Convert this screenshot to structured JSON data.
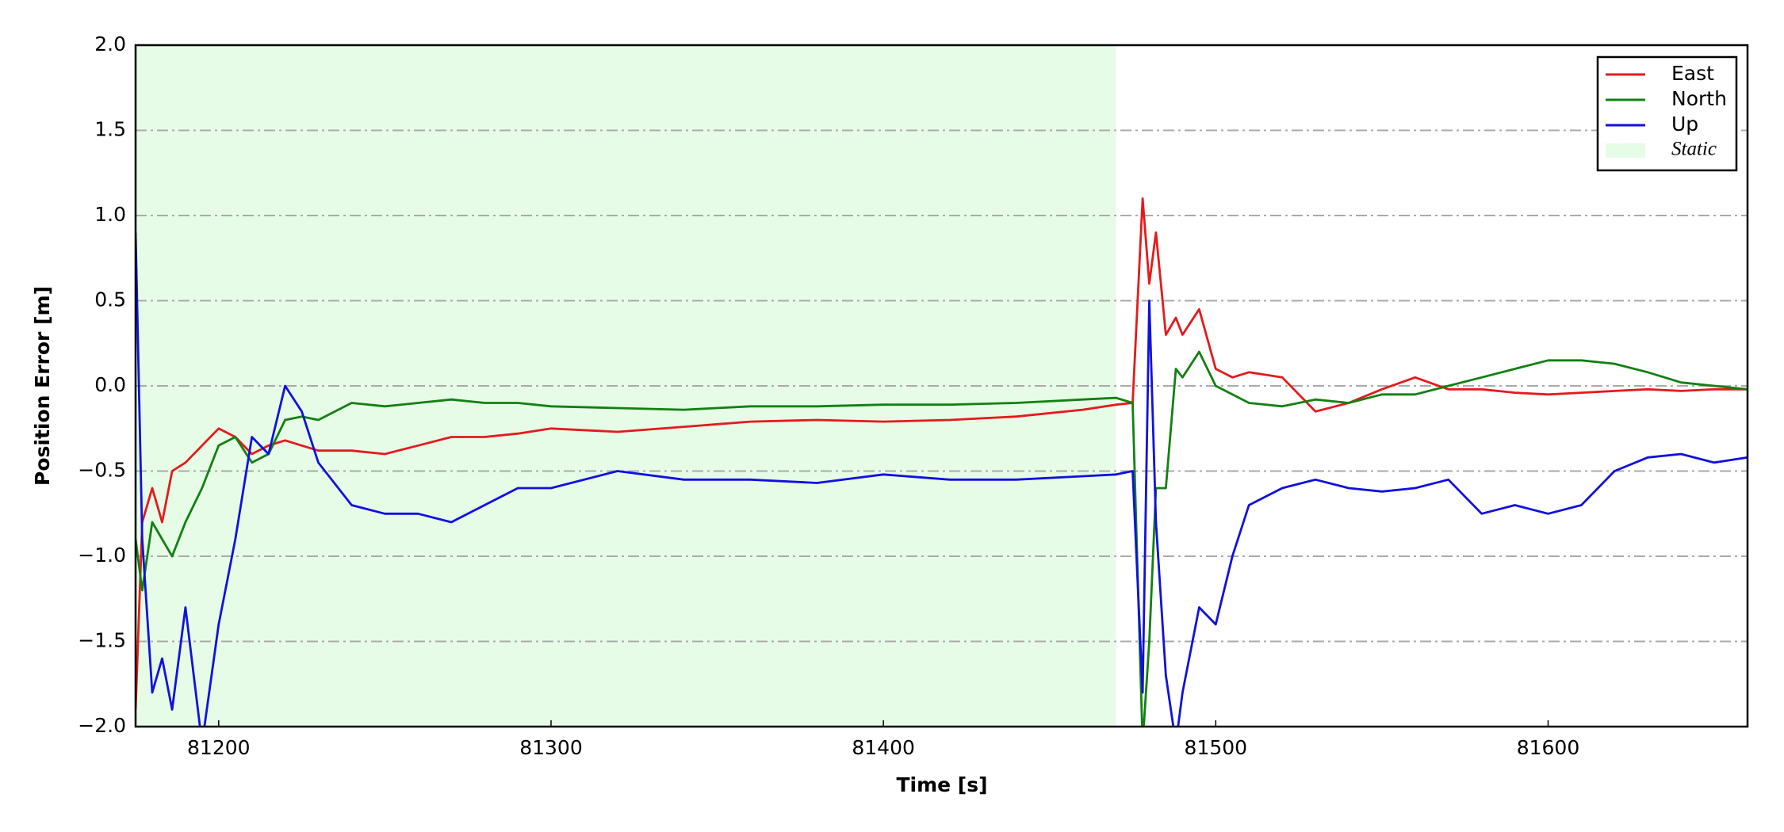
{
  "chart_data": {
    "type": "line",
    "xlabel": "Time [s]",
    "ylabel": "Position Error [m]",
    "x": [
      81175,
      81177,
      81180,
      81183,
      81186,
      81190,
      81195,
      81200,
      81205,
      81210,
      81215,
      81220,
      81225,
      81230,
      81240,
      81250,
      81260,
      81270,
      81280,
      81290,
      81300,
      81320,
      81340,
      81360,
      81380,
      81400,
      81420,
      81440,
      81460,
      81470,
      81475,
      81478,
      81480,
      81482,
      81485,
      81488,
      81490,
      81495,
      81500,
      81505,
      81510,
      81520,
      81530,
      81540,
      81550,
      81560,
      81570,
      81580,
      81590,
      81600,
      81610,
      81620,
      81630,
      81640,
      81650,
      81660
    ],
    "series": [
      {
        "name": "East",
        "color": "#e41a1c",
        "values": [
          -1.9,
          -0.8,
          -0.6,
          -0.8,
          -0.5,
          -0.45,
          -0.35,
          -0.25,
          -0.3,
          -0.4,
          -0.35,
          -0.32,
          -0.35,
          -0.38,
          -0.38,
          -0.4,
          -0.35,
          -0.3,
          -0.3,
          -0.28,
          -0.25,
          -0.27,
          -0.24,
          -0.21,
          -0.2,
          -0.21,
          -0.2,
          -0.18,
          -0.14,
          -0.11,
          -0.1,
          1.1,
          0.6,
          0.9,
          0.3,
          0.4,
          0.3,
          0.45,
          0.1,
          0.05,
          0.08,
          0.05,
          -0.15,
          -0.1,
          -0.02,
          0.05,
          -0.02,
          -0.02,
          -0.04,
          -0.05,
          -0.04,
          -0.03,
          -0.02,
          -0.03,
          -0.02,
          -0.02
        ]
      },
      {
        "name": "North",
        "color": "#128012",
        "values": [
          -0.9,
          -1.2,
          -0.8,
          -0.9,
          -1.0,
          -0.8,
          -0.6,
          -0.35,
          -0.3,
          -0.45,
          -0.4,
          -0.2,
          -0.18,
          -0.2,
          -0.1,
          -0.12,
          -0.1,
          -0.08,
          -0.1,
          -0.1,
          -0.12,
          -0.13,
          -0.14,
          -0.12,
          -0.12,
          -0.11,
          -0.11,
          -0.1,
          -0.08,
          -0.07,
          -0.1,
          -2.1,
          -1.5,
          -0.6,
          -0.6,
          0.1,
          0.05,
          0.2,
          0.0,
          -0.05,
          -0.1,
          -0.12,
          -0.08,
          -0.1,
          -0.05,
          -0.05,
          0.0,
          0.05,
          0.1,
          0.15,
          0.15,
          0.13,
          0.08,
          0.02,
          0.0,
          -0.02
        ]
      },
      {
        "name": "Up",
        "color": "#1010e0",
        "values": [
          0.9,
          -0.9,
          -1.8,
          -1.6,
          -1.9,
          -1.3,
          -2.1,
          -1.4,
          -0.9,
          -0.3,
          -0.4,
          0.0,
          -0.15,
          -0.45,
          -0.7,
          -0.75,
          -0.75,
          -0.8,
          -0.7,
          -0.6,
          -0.6,
          -0.5,
          -0.55,
          -0.55,
          -0.57,
          -0.52,
          -0.55,
          -0.55,
          -0.53,
          -0.52,
          -0.5,
          -1.8,
          0.5,
          -0.8,
          -1.7,
          -2.1,
          -1.8,
          -1.3,
          -1.4,
          -1.0,
          -0.7,
          -0.6,
          -0.55,
          -0.6,
          -0.62,
          -0.6,
          -0.55,
          -0.75,
          -0.7,
          -0.75,
          -0.7,
          -0.5,
          -0.42,
          -0.4,
          -0.45,
          -0.42
        ]
      }
    ],
    "spans": [
      {
        "name": "Static",
        "color": "#e6fce6",
        "x0": 81175,
        "x1": 81470
      }
    ],
    "xlim": [
      81175,
      81660
    ],
    "ylim": [
      -2,
      2
    ],
    "xticks": [
      81200,
      81300,
      81400,
      81500,
      81600
    ],
    "yticks": [
      {
        "value": -2,
        "label": "−2.0"
      },
      {
        "value": -1.5,
        "label": "−1.5"
      },
      {
        "value": -1,
        "label": "−1.0"
      },
      {
        "value": -0.5,
        "label": "−0.5"
      },
      {
        "value": 0,
        "label": "0.0"
      },
      0.5,
      {
        "value": 1,
        "label": "1.0"
      },
      1.5,
      {
        "value": 2,
        "label": "2.0"
      }
    ],
    "grid": true,
    "legend": "upper right"
  }
}
